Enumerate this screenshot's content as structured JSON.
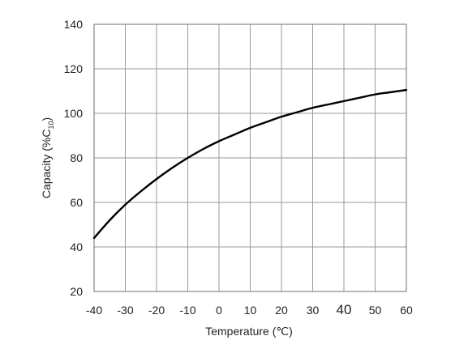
{
  "chart_data": {
    "type": "line",
    "xlabel": "Temperature (℃)",
    "ylabel": {
      "main": "Capacity (%C",
      "sub": "10",
      "close": ")"
    },
    "xlim": [
      -40,
      60
    ],
    "ylim": [
      20,
      140
    ],
    "xticks": [
      -40,
      -30,
      -20,
      -10,
      0,
      10,
      20,
      30,
      40,
      50,
      60
    ],
    "yticks": [
      20,
      40,
      60,
      80,
      100,
      120,
      140
    ],
    "grid": true,
    "legend": "none",
    "series": [
      {
        "x": [
          -40,
          -35,
          -30,
          -25,
          -20,
          -15,
          -10,
          -5,
          0,
          5,
          10,
          15,
          20,
          25,
          30,
          35,
          40,
          45,
          50,
          55,
          60
        ],
        "y": [
          44,
          52,
          59,
          65,
          70.5,
          75.5,
          80,
          84,
          87.5,
          90.5,
          93.5,
          96,
          98.5,
          100.5,
          102.5,
          104,
          105.5,
          107,
          108.5,
          109.5,
          110.5
        ],
        "color": "#000000"
      }
    ]
  }
}
